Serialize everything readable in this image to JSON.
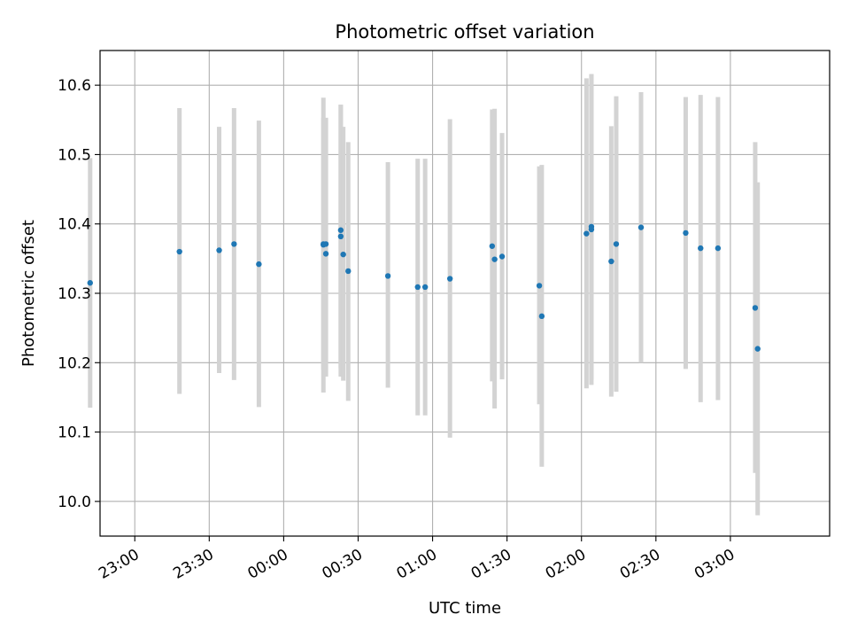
{
  "chart_data": {
    "type": "scatter",
    "title": "Photometric offset variation",
    "xlabel": "UTC time",
    "ylabel": "Photometric offset",
    "x_unit": "UTC time (HH:MM, night crossing midnight)",
    "xlim": [
      "22:46",
      "03:40"
    ],
    "ylim": [
      9.95,
      10.65
    ],
    "grid": true,
    "x_ticks": [
      "23:00",
      "23:30",
      "00:00",
      "00:30",
      "01:00",
      "01:30",
      "02:00",
      "02:30",
      "03:00"
    ],
    "y_ticks": [
      10.0,
      10.1,
      10.2,
      10.3,
      10.4,
      10.5,
      10.6
    ],
    "x_tick_labels": [
      "23:00",
      "23:30",
      "00:00",
      "00:30",
      "01:00",
      "01:30",
      "02:00",
      "02:30",
      "03:00"
    ],
    "y_tick_labels": [
      "10.0",
      "10.1",
      "10.2",
      "10.3",
      "10.4",
      "10.5",
      "10.6"
    ],
    "colors": {
      "point": "#1f77b4",
      "errorbar": "#d3d3d3",
      "grid": "#b0b0b0"
    },
    "points": [
      {
        "x": "22:42",
        "y": 10.315,
        "ylow": 10.135,
        "yhigh": 10.495
      },
      {
        "x": "23:18",
        "y": 10.36,
        "ylow": 10.155,
        "yhigh": 10.567
      },
      {
        "x": "23:34",
        "y": 10.362,
        "ylow": 10.185,
        "yhigh": 10.54
      },
      {
        "x": "23:40",
        "y": 10.371,
        "ylow": 10.175,
        "yhigh": 10.567
      },
      {
        "x": "23:50",
        "y": 10.342,
        "ylow": 10.136,
        "yhigh": 10.549
      },
      {
        "x": "00:16",
        "y": 10.37,
        "ylow": 10.157,
        "yhigh": 10.582
      },
      {
        "x": "00:16",
        "y": 10.371,
        "ylow": 10.19,
        "yhigh": 10.553
      },
      {
        "x": "00:17",
        "y": 10.371,
        "ylow": 10.181,
        "yhigh": 10.552
      },
      {
        "x": "00:17",
        "y": 10.357,
        "ylow": 10.18,
        "yhigh": 10.553
      },
      {
        "x": "00:23",
        "y": 10.391,
        "ylow": 10.192,
        "yhigh": 10.572
      },
      {
        "x": "00:23",
        "y": 10.382,
        "ylow": 10.18,
        "yhigh": 10.572
      },
      {
        "x": "00:24",
        "y": 10.356,
        "ylow": 10.174,
        "yhigh": 10.54
      },
      {
        "x": "00:26",
        "y": 10.332,
        "ylow": 10.145,
        "yhigh": 10.518
      },
      {
        "x": "00:42",
        "y": 10.325,
        "ylow": 10.164,
        "yhigh": 10.489
      },
      {
        "x": "00:54",
        "y": 10.309,
        "ylow": 10.124,
        "yhigh": 10.494
      },
      {
        "x": "00:57",
        "y": 10.309,
        "ylow": 10.124,
        "yhigh": 10.494
      },
      {
        "x": "01:07",
        "y": 10.321,
        "ylow": 10.092,
        "yhigh": 10.551
      },
      {
        "x": "01:24",
        "y": 10.368,
        "ylow": 10.173,
        "yhigh": 10.565
      },
      {
        "x": "01:25",
        "y": 10.349,
        "ylow": 10.134,
        "yhigh": 10.566
      },
      {
        "x": "01:28",
        "y": 10.353,
        "ylow": 10.176,
        "yhigh": 10.531
      },
      {
        "x": "01:43",
        "y": 10.311,
        "ylow": 10.14,
        "yhigh": 10.483
      },
      {
        "x": "01:44",
        "y": 10.267,
        "ylow": 10.05,
        "yhigh": 10.485
      },
      {
        "x": "02:02",
        "y": 10.386,
        "ylow": 10.163,
        "yhigh": 10.61
      },
      {
        "x": "02:04",
        "y": 10.392,
        "ylow": 10.168,
        "yhigh": 10.616
      },
      {
        "x": "02:04",
        "y": 10.396,
        "ylow": 10.175,
        "yhigh": 10.616
      },
      {
        "x": "02:12",
        "y": 10.346,
        "ylow": 10.151,
        "yhigh": 10.541
      },
      {
        "x": "02:14",
        "y": 10.371,
        "ylow": 10.158,
        "yhigh": 10.584
      },
      {
        "x": "02:24",
        "y": 10.395,
        "ylow": 10.2,
        "yhigh": 10.59
      },
      {
        "x": "02:42",
        "y": 10.387,
        "ylow": 10.191,
        "yhigh": 10.583
      },
      {
        "x": "02:48",
        "y": 10.365,
        "ylow": 10.143,
        "yhigh": 10.586
      },
      {
        "x": "02:55",
        "y": 10.365,
        "ylow": 10.146,
        "yhigh": 10.583
      },
      {
        "x": "03:10",
        "y": 10.279,
        "ylow": 10.041,
        "yhigh": 10.518
      },
      {
        "x": "03:11",
        "y": 10.22,
        "ylow": 9.98,
        "yhigh": 10.46
      }
    ]
  }
}
